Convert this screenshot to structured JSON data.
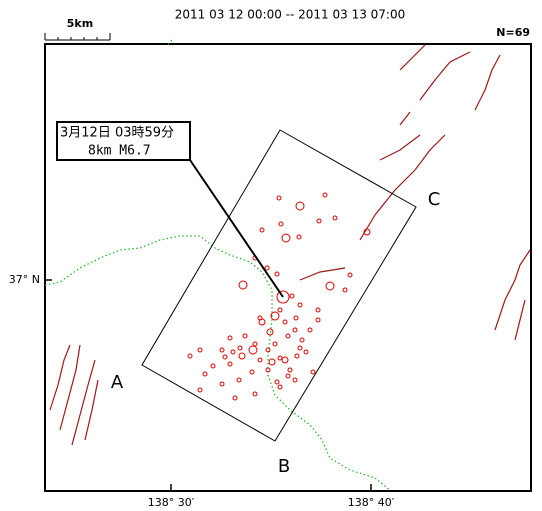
{
  "header": {
    "period": "2011 03 12 00:00 -- 2011 03 13 07:00",
    "scale": "5km",
    "count": "N=69"
  },
  "callout": {
    "time": "3月12日 03時59分",
    "detail": "8km  M6.7"
  },
  "section_labels": [
    "A",
    "B",
    "C"
  ],
  "axes": {
    "latitude": "37° N",
    "longitudes": [
      "138° 30′",
      "138° 40′"
    ]
  }
}
